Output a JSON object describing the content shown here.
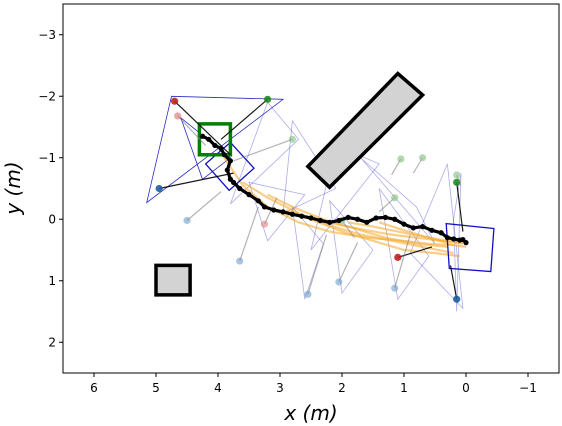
{
  "chart_data": {
    "type": "scatter",
    "title": "",
    "xlabel": "x (m)",
    "ylabel": "y (m)",
    "xlim": [
      6.5,
      -1.5
    ],
    "ylim": [
      2.5,
      -3.5
    ],
    "xticks": [
      6,
      5,
      4,
      3,
      2,
      1,
      0,
      -1
    ],
    "xtick_labels": [
      "6",
      "5",
      "4",
      "3",
      "2",
      "1",
      "0",
      "−1"
    ],
    "yticks": [
      -3,
      -2,
      -1,
      0,
      1,
      2
    ],
    "ytick_labels": [
      "−3",
      "−2",
      "−1",
      "0",
      "1",
      "2"
    ],
    "grid": false,
    "colors": {
      "trajectory": "#000000",
      "predictions": "#f5a623",
      "triangles": "#1515c0",
      "obstacle_fill": "#d3d3d3",
      "goal": "#008000",
      "robot_box": "#1010c0",
      "pedestrian_line": "#808080"
    },
    "obstacles": [
      {
        "name": "rectangle-obstacle-diagonal",
        "corners": [
          [
            2.2,
            -0.52
          ],
          [
            0.7,
            -2.02
          ],
          [
            1.1,
            -2.37
          ],
          [
            2.55,
            -0.86
          ]
        ]
      },
      {
        "name": "square-obstacle",
        "corners": [
          [
            5.0,
            0.75
          ],
          [
            4.45,
            0.75
          ],
          [
            4.45,
            1.23
          ],
          [
            5.0,
            1.23
          ]
        ]
      }
    ],
    "goal_box": {
      "corners": [
        [
          4.3,
          -1.55
        ],
        [
          3.8,
          -1.55
        ],
        [
          3.8,
          -1.05
        ],
        [
          4.3,
          -1.05
        ]
      ]
    },
    "robot_boxes": [
      {
        "corners": [
          [
            3.8,
            -1.25
          ],
          [
            3.42,
            -0.83
          ],
          [
            3.82,
            -0.47
          ],
          [
            4.2,
            -0.9
          ]
        ]
      },
      {
        "corners": [
          [
            -0.45,
            0.15
          ],
          [
            0.32,
            0.07
          ],
          [
            0.27,
            0.8
          ],
          [
            -0.4,
            0.85
          ]
        ]
      }
    ],
    "trajectory": {
      "x": [
        4.25,
        4.15,
        4.05,
        3.95,
        3.9,
        3.8,
        3.85,
        3.8,
        3.75,
        3.65,
        3.5,
        3.35,
        3.25,
        3.1,
        2.95,
        2.8,
        2.65,
        2.5,
        2.35,
        2.2,
        2.05,
        1.9,
        1.75,
        1.6,
        1.45,
        1.3,
        1.15,
        1.0,
        0.85,
        0.7,
        0.55,
        0.4,
        0.3,
        0.2,
        0.1,
        0.05,
        0.0
      ],
      "y": [
        -1.35,
        -1.3,
        -1.2,
        -1.15,
        -1.05,
        -0.95,
        -0.8,
        -0.65,
        -0.6,
        -0.5,
        -0.4,
        -0.3,
        -0.2,
        -0.15,
        -0.12,
        -0.08,
        -0.05,
        -0.02,
        0.02,
        0.05,
        0.02,
        -0.03,
        0.0,
        0.05,
        -0.02,
        -0.03,
        0.0,
        0.08,
        0.14,
        0.12,
        0.18,
        0.22,
        0.3,
        0.32,
        0.34,
        0.33,
        0.38
      ]
    },
    "predictions": [
      {
        "x": [
          3.9,
          3.6,
          3.2,
          2.7,
          2.2,
          1.6,
          1.0,
          0.6,
          0.2
        ],
        "y": [
          -1.0,
          -0.55,
          -0.2,
          0.05,
          0.2,
          0.3,
          0.35,
          0.4,
          0.42
        ]
      },
      {
        "x": [
          3.6,
          3.2,
          2.7,
          2.2,
          1.7,
          1.2,
          0.7,
          0.2
        ],
        "y": [
          -0.6,
          -0.35,
          -0.1,
          0.1,
          0.25,
          0.35,
          0.45,
          0.55
        ]
      },
      {
        "x": [
          3.2,
          2.8,
          2.3,
          1.8,
          1.3,
          0.8,
          0.3
        ],
        "y": [
          -0.4,
          -0.2,
          0.0,
          0.15,
          0.3,
          0.4,
          0.45
        ]
      },
      {
        "x": [
          2.9,
          2.5,
          2.0,
          1.5,
          1.0,
          0.5,
          0.1
        ],
        "y": [
          -0.15,
          0.0,
          0.2,
          0.35,
          0.5,
          0.55,
          0.6
        ]
      },
      {
        "x": [
          2.4,
          2.0,
          1.6,
          1.2,
          0.8,
          0.4,
          0.0
        ],
        "y": [
          0.0,
          0.1,
          0.18,
          0.25,
          0.3,
          0.35,
          0.38
        ]
      },
      {
        "x": [
          1.9,
          1.5,
          1.1,
          0.7,
          0.3,
          0.05
        ],
        "y": [
          0.05,
          0.12,
          0.2,
          0.28,
          0.35,
          0.4
        ]
      },
      {
        "x": [
          1.4,
          1.0,
          0.6,
          0.2,
          0.0
        ],
        "y": [
          0.05,
          0.18,
          0.3,
          0.42,
          0.45
        ]
      }
    ],
    "triangles": [
      [
        [
          4.75,
          -2.0
        ],
        [
          2.95,
          -1.95
        ],
        [
          5.15,
          -0.27
        ]
      ],
      [
        [
          4.6,
          -1.65
        ],
        [
          3.8,
          -1.0
        ],
        [
          4.25,
          -0.65
        ]
      ],
      [
        [
          3.2,
          -1.9
        ],
        [
          2.7,
          -1.3
        ],
        [
          3.8,
          -0.25
        ]
      ],
      [
        [
          3.5,
          -0.6
        ],
        [
          2.6,
          -0.4
        ],
        [
          3.2,
          0.35
        ]
      ],
      [
        [
          2.8,
          -0.2
        ],
        [
          2.3,
          0.4
        ],
        [
          2.6,
          1.3
        ]
      ],
      [
        [
          2.2,
          -0.3
        ],
        [
          1.5,
          0.5
        ],
        [
          2.0,
          1.2
        ]
      ],
      [
        [
          1.4,
          -0.5
        ],
        [
          0.6,
          0.6
        ],
        [
          1.1,
          1.3
        ]
      ],
      [
        [
          1.7,
          -1.0
        ],
        [
          0.5,
          0.4
        ],
        [
          0.8,
          -0.2
        ]
      ],
      [
        [
          0.3,
          -0.9
        ],
        [
          0.9,
          0.55
        ],
        [
          0.05,
          1.45
        ]
      ],
      [
        [
          0.08,
          -0.75
        ],
        [
          0.15,
          1.5
        ],
        [
          0.2,
          0.0
        ]
      ],
      [
        [
          2.1,
          -1.2
        ],
        [
          1.4,
          -0.9
        ],
        [
          2.5,
          0.5
        ]
      ],
      [
        [
          2.8,
          -1.6
        ],
        [
          2.1,
          -0.5
        ],
        [
          2.95,
          -0.1
        ]
      ]
    ],
    "pedestrians": [
      {
        "start": [
          4.7,
          -1.92
        ],
        "end": [
          3.8,
          -1.05
        ],
        "color": "#c02020",
        "alpha": 0.9
      },
      {
        "start": [
          4.65,
          -1.68
        ],
        "end": [
          4.2,
          -1.2
        ],
        "color": "#e08080",
        "alpha": 0.7
      },
      {
        "start": [
          4.95,
          -0.5
        ],
        "end": [
          3.75,
          -0.75
        ],
        "color": "#1f5fa0",
        "alpha": 0.9
      },
      {
        "start": [
          4.5,
          0.02
        ],
        "end": [
          3.95,
          -0.45
        ],
        "color": "#6fa0c8",
        "alpha": 0.6
      },
      {
        "start": [
          3.2,
          -1.95
        ],
        "end": [
          3.95,
          -1.3
        ],
        "color": "#1f8a1f",
        "alpha": 0.9
      },
      {
        "start": [
          2.8,
          -1.3
        ],
        "end": [
          3.75,
          -0.95
        ],
        "color": "#7fc07f",
        "alpha": 0.6
      },
      {
        "start": [
          3.65,
          0.68
        ],
        "end": [
          3.35,
          -0.2
        ],
        "color": "#6fa0c8",
        "alpha": 0.6
      },
      {
        "start": [
          3.25,
          0.08
        ],
        "end": [
          3.05,
          -0.35
        ],
        "color": "#e08080",
        "alpha": 0.6
      },
      {
        "start": [
          2.55,
          1.22
        ],
        "end": [
          2.25,
          0.25
        ],
        "color": "#6fa0c8",
        "alpha": 0.6
      },
      {
        "start": [
          2.05,
          1.02
        ],
        "end": [
          1.75,
          0.38
        ],
        "color": "#6fa0c8",
        "alpha": 0.6
      },
      {
        "start": [
          2.0,
          0.02
        ],
        "end": [
          1.8,
          0.3
        ],
        "color": "#7fc07f",
        "alpha": 0.6
      },
      {
        "start": [
          1.1,
          0.62
        ],
        "end": [
          0.55,
          0.45
        ],
        "color": "#c02020",
        "alpha": 0.9
      },
      {
        "start": [
          1.15,
          1.12
        ],
        "end": [
          0.9,
          0.25
        ],
        "color": "#6fa0c8",
        "alpha": 0.6
      },
      {
        "start": [
          1.15,
          -0.35
        ],
        "end": [
          1.4,
          -0.12
        ],
        "color": "#7fc07f",
        "alpha": 0.6
      },
      {
        "start": [
          1.05,
          -0.98
        ],
        "end": [
          1.2,
          -0.72
        ],
        "color": "#7fc07f",
        "alpha": 0.6
      },
      {
        "start": [
          0.7,
          -1.0
        ],
        "end": [
          0.85,
          -0.75
        ],
        "color": "#7fc07f",
        "alpha": 0.6
      },
      {
        "start": [
          0.15,
          -0.6
        ],
        "end": [
          0.05,
          0.2
        ],
        "color": "#1f8a1f",
        "alpha": 0.9
      },
      {
        "start": [
          0.15,
          -0.72
        ],
        "end": [
          0.08,
          -0.55
        ],
        "color": "#7fc07f",
        "alpha": 0.6
      },
      {
        "start": [
          0.15,
          1.3
        ],
        "end": [
          0.25,
          0.75
        ],
        "color": "#1f5fa0",
        "alpha": 0.9
      }
    ]
  }
}
